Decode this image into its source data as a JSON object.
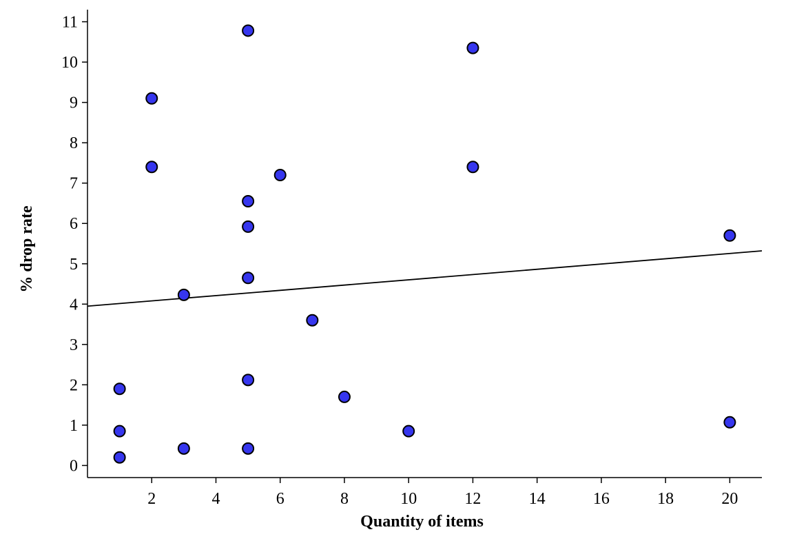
{
  "chart_data": {
    "type": "scatter",
    "xlabel": "Quantity of items",
    "ylabel": "% drop rate",
    "xlim": [
      0,
      21
    ],
    "ylim": [
      -0.3,
      11.3
    ],
    "x_ticks": [
      2,
      4,
      6,
      8,
      10,
      12,
      14,
      16,
      18,
      20
    ],
    "y_ticks": [
      0,
      1,
      2,
      3,
      4,
      5,
      6,
      7,
      8,
      9,
      10,
      11
    ],
    "grid": false,
    "marker_color": "#3636ee",
    "marker_edge_color": "#000000",
    "points": [
      {
        "x": 1,
        "y": 0.2
      },
      {
        "x": 1,
        "y": 0.85
      },
      {
        "x": 1,
        "y": 1.9
      },
      {
        "x": 2,
        "y": 7.4
      },
      {
        "x": 2,
        "y": 9.1
      },
      {
        "x": 3,
        "y": 0.42
      },
      {
        "x": 3,
        "y": 4.23
      },
      {
        "x": 5,
        "y": 0.42
      },
      {
        "x": 5,
        "y": 2.12
      },
      {
        "x": 5,
        "y": 4.65
      },
      {
        "x": 5,
        "y": 5.92
      },
      {
        "x": 5,
        "y": 6.55
      },
      {
        "x": 5,
        "y": 10.78
      },
      {
        "x": 6,
        "y": 7.2
      },
      {
        "x": 7,
        "y": 3.6
      },
      {
        "x": 8,
        "y": 1.7
      },
      {
        "x": 10,
        "y": 0.85
      },
      {
        "x": 12,
        "y": 7.4
      },
      {
        "x": 12,
        "y": 10.35
      },
      {
        "x": 20,
        "y": 1.07
      },
      {
        "x": 20,
        "y": 5.7
      }
    ],
    "trendline": {
      "x": [
        0,
        21
      ],
      "y": [
        3.95,
        5.32
      ]
    }
  }
}
